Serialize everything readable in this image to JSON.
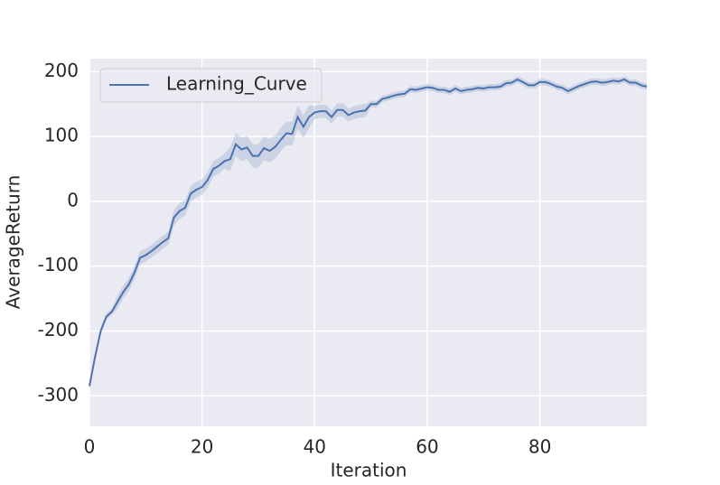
{
  "chart_data": {
    "type": "line",
    "xlabel": "Iteration",
    "ylabel": "AverageReturn",
    "x": [
      0,
      1,
      2,
      3,
      4,
      5,
      6,
      7,
      8,
      9,
      10,
      11,
      12,
      13,
      14,
      15,
      16,
      17,
      18,
      19,
      20,
      21,
      22,
      23,
      24,
      25,
      26,
      27,
      28,
      29,
      30,
      31,
      32,
      33,
      34,
      35,
      36,
      37,
      38,
      39,
      40,
      41,
      42,
      43,
      44,
      45,
      46,
      47,
      48,
      49,
      50,
      51,
      52,
      53,
      54,
      55,
      56,
      57,
      58,
      59,
      60,
      61,
      62,
      63,
      64,
      65,
      66,
      67,
      68,
      69,
      70,
      71,
      72,
      73,
      74,
      75,
      76,
      77,
      78,
      79,
      80,
      81,
      82,
      83,
      84,
      85,
      86,
      87,
      88,
      89,
      90,
      91,
      92,
      93,
      94,
      95,
      96,
      97,
      98,
      99
    ],
    "series": [
      {
        "name": "Learning_Curve",
        "color": "#4c72b0",
        "values": [
          -285,
          -240,
          -200,
          -178,
          -170,
          -155,
          -140,
          -128,
          -110,
          -87,
          -83,
          -77,
          -70,
          -63,
          -57,
          -25,
          -15,
          -10,
          12,
          18,
          22,
          33,
          50,
          55,
          62,
          65,
          88,
          80,
          83,
          70,
          70,
          82,
          78,
          84,
          95,
          105,
          104,
          130,
          115,
          130,
          137,
          139,
          139,
          130,
          141,
          141,
          133,
          137,
          139,
          140,
          150,
          150,
          158,
          160,
          163,
          165,
          166,
          173,
          172,
          174,
          176,
          175,
          172,
          172,
          169,
          174,
          170,
          172,
          173,
          175,
          174,
          176,
          176,
          177,
          182,
          183,
          188,
          184,
          179,
          179,
          184,
          184,
          181,
          177,
          175,
          170,
          174,
          178,
          181,
          184,
          185,
          183,
          184,
          186,
          185,
          188,
          183,
          183,
          179,
          177
        ],
        "lower": [
          -290,
          -245,
          -205,
          -183,
          -175,
          -165,
          -150,
          -138,
          -120,
          -97,
          -93,
          -87,
          -80,
          -73,
          -67,
          -37,
          -27,
          -22,
          0,
          6,
          10,
          21,
          38,
          43,
          50,
          47,
          70,
          62,
          65,
          52,
          52,
          64,
          60,
          66,
          77,
          87,
          86,
          112,
          97,
          112,
          127,
          129,
          129,
          120,
          131,
          131,
          123,
          127,
          129,
          130,
          145,
          145,
          153,
          155,
          158,
          160,
          161,
          168,
          167,
          169,
          171,
          170,
          167,
          167,
          164,
          169,
          165,
          167,
          168,
          170,
          169,
          171,
          171,
          172,
          177,
          178,
          183,
          179,
          174,
          174,
          179,
          179,
          176,
          172,
          170,
          165,
          169,
          173,
          176,
          179,
          180,
          178,
          179,
          181,
          180,
          183,
          178,
          178,
          174,
          172
        ],
        "upper": [
          -280,
          -235,
          -195,
          -173,
          -165,
          -145,
          -130,
          -118,
          -100,
          -77,
          -73,
          -67,
          -60,
          -53,
          -47,
          -13,
          -3,
          2,
          24,
          30,
          34,
          45,
          62,
          67,
          74,
          83,
          106,
          98,
          101,
          88,
          88,
          100,
          96,
          102,
          113,
          123,
          122,
          148,
          133,
          148,
          147,
          149,
          149,
          140,
          151,
          151,
          143,
          147,
          149,
          150,
          155,
          155,
          163,
          165,
          168,
          170,
          171,
          178,
          177,
          179,
          181,
          180,
          177,
          177,
          174,
          179,
          175,
          177,
          178,
          180,
          179,
          181,
          181,
          182,
          187,
          188,
          193,
          189,
          184,
          184,
          189,
          189,
          186,
          182,
          180,
          175,
          179,
          183,
          186,
          189,
          190,
          188,
          189,
          191,
          190,
          193,
          188,
          188,
          184,
          182
        ]
      }
    ],
    "xlim": [
      0,
      99
    ],
    "ylim": [
      -347,
      220
    ],
    "xticks": [
      0,
      20,
      40,
      60,
      80
    ],
    "yticks": [
      -300,
      -200,
      -100,
      0,
      100,
      200
    ],
    "grid": true,
    "legend": "upper left"
  }
}
